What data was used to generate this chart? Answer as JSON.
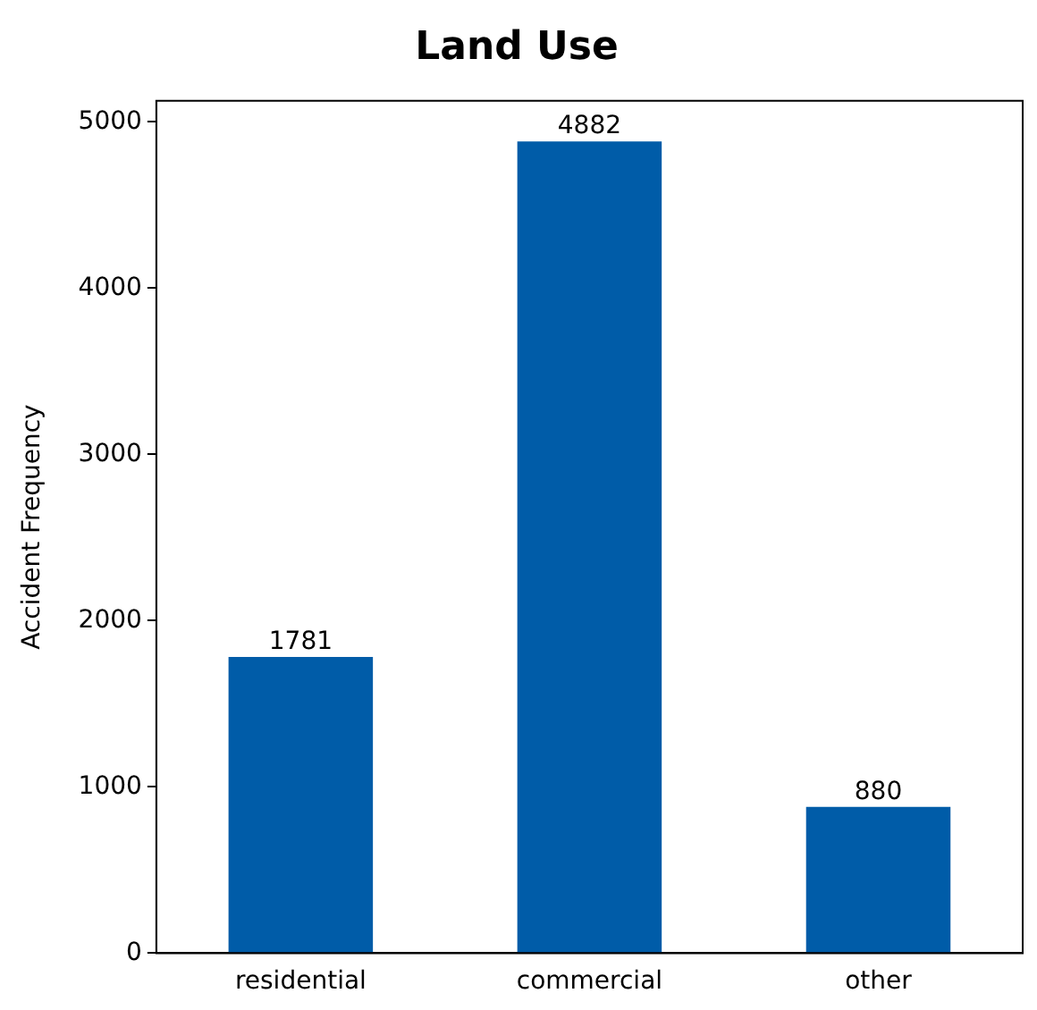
{
  "chart_data": {
    "type": "bar",
    "title": "Land Use",
    "ylabel": "Accident Frequency",
    "categories": [
      "residential",
      "commercial",
      "other"
    ],
    "values": [
      1781,
      4882,
      880
    ],
    "color": "#005ca8",
    "ylim": [
      0,
      5126
    ],
    "yticks": [
      0,
      1000,
      2000,
      3000,
      4000,
      5000
    ],
    "grid": false,
    "data_labels": true
  }
}
